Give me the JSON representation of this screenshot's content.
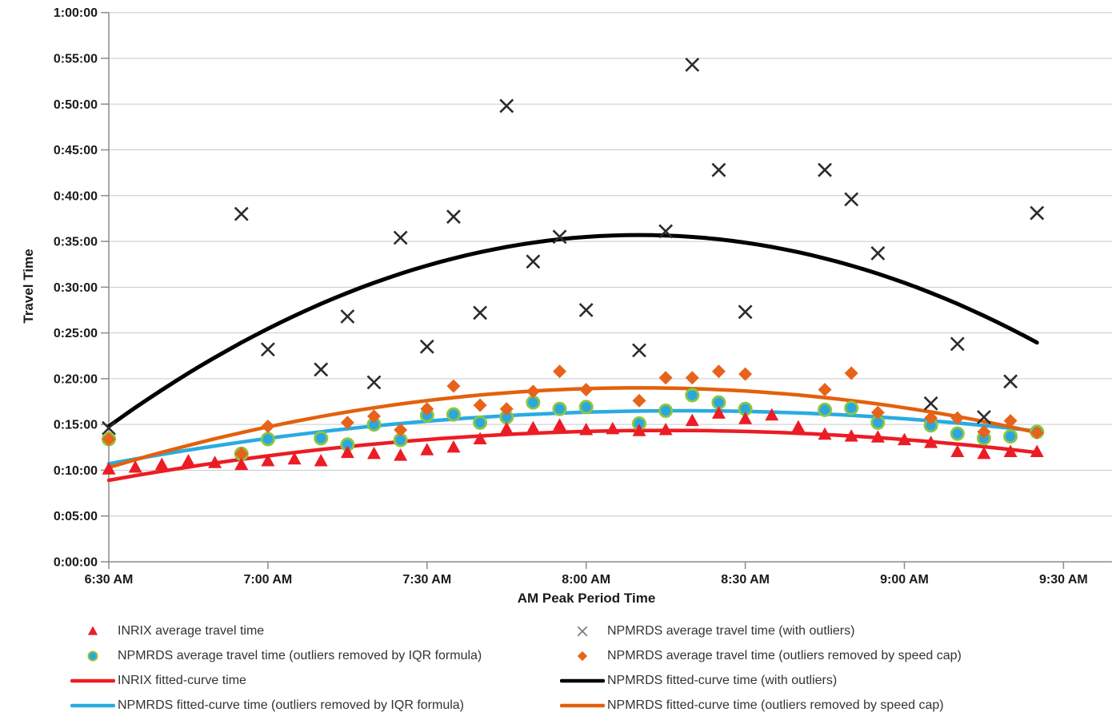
{
  "chart_data": {
    "type": "scatter",
    "title": "",
    "xlabel": "AM Peak Period Time",
    "ylabel": "Travel Time",
    "x_axis": {
      "tick_labels": [
        "6:30 AM",
        "7:00 AM",
        "7:30 AM",
        "8:00 AM",
        "8:30 AM",
        "9:00 AM",
        "9:30 AM"
      ],
      "tick_minutes_after_start": [
        0,
        30,
        60,
        90,
        120,
        150,
        180
      ],
      "unit": "minutes after 6:30 AM"
    },
    "y_axis": {
      "tick_labels": [
        "1:00:00",
        "0:55:00",
        "0:50:00",
        "0:45:00",
        "0:40:00",
        "0:35:00",
        "0:30:00",
        "0:25:00",
        "0:20:00",
        "0:15:00",
        "0:10:00",
        "0:05:00",
        "0:00:00"
      ],
      "tick_minutes": [
        60,
        55,
        50,
        45,
        40,
        35,
        30,
        25,
        20,
        15,
        10,
        5,
        0
      ],
      "range_minutes": [
        0,
        60
      ],
      "unit": "travel time in decimal minutes"
    },
    "grid": "horizontal-only",
    "style": {
      "grid_color": "#c9c9c9",
      "axis_color": "#8c8c8c",
      "text_color": "#1a1a1a"
    },
    "series": [
      {
        "id": "npmrds-outliers",
        "name": "NPMRDS average travel time (with outliers)",
        "marker": "x",
        "color": "#2b2b2b",
        "points": [
          [
            0,
            14.6
          ],
          [
            25,
            38.0
          ],
          [
            30,
            23.2
          ],
          [
            40,
            21.0
          ],
          [
            45,
            26.8
          ],
          [
            50,
            19.6
          ],
          [
            55,
            35.4
          ],
          [
            60,
            23.5
          ],
          [
            65,
            37.7
          ],
          [
            70,
            27.2
          ],
          [
            75,
            49.8
          ],
          [
            80,
            32.8
          ],
          [
            85,
            35.5
          ],
          [
            90,
            27.5
          ],
          [
            100,
            23.1
          ],
          [
            105,
            36.1
          ],
          [
            110,
            54.3
          ],
          [
            115,
            42.8
          ],
          [
            120,
            27.3
          ],
          [
            135,
            42.8
          ],
          [
            140,
            39.6
          ],
          [
            145,
            33.7
          ],
          [
            155,
            17.3
          ],
          [
            160,
            23.8
          ],
          [
            165,
            15.8
          ],
          [
            170,
            19.7
          ],
          [
            175,
            38.1
          ]
        ]
      },
      {
        "id": "npmrds-iqr",
        "name": "NPMRDS average travel time (outliers removed by IQR formula)",
        "marker": "circle",
        "fill": "#2ba7df",
        "ring": "#8cc63f",
        "points": [
          [
            0,
            13.4
          ],
          [
            25,
            11.8
          ],
          [
            30,
            13.4
          ],
          [
            40,
            13.5
          ],
          [
            45,
            12.8
          ],
          [
            50,
            15.0
          ],
          [
            55,
            13.3
          ],
          [
            60,
            16.0
          ],
          [
            65,
            16.1
          ],
          [
            70,
            15.2
          ],
          [
            75,
            15.8
          ],
          [
            80,
            17.4
          ],
          [
            85,
            16.7
          ],
          [
            90,
            16.9
          ],
          [
            100,
            15.1
          ],
          [
            105,
            16.5
          ],
          [
            110,
            18.2
          ],
          [
            115,
            17.4
          ],
          [
            120,
            16.7
          ],
          [
            135,
            16.6
          ],
          [
            140,
            16.8
          ],
          [
            145,
            15.2
          ],
          [
            155,
            14.9
          ],
          [
            160,
            14.0
          ],
          [
            165,
            13.5
          ],
          [
            170,
            13.7
          ],
          [
            175,
            14.2
          ]
        ]
      },
      {
        "id": "npmrds-speedcap",
        "name": "NPMRDS average travel time (outliers removed by speed cap)",
        "marker": "diamond",
        "color": "#e7631b",
        "points": [
          [
            0,
            13.4
          ],
          [
            25,
            11.8
          ],
          [
            30,
            14.8
          ],
          [
            45,
            15.2
          ],
          [
            50,
            15.9
          ],
          [
            55,
            14.4
          ],
          [
            60,
            16.7
          ],
          [
            65,
            19.2
          ],
          [
            70,
            17.1
          ],
          [
            75,
            16.7
          ],
          [
            80,
            18.6
          ],
          [
            85,
            20.8
          ],
          [
            90,
            18.8
          ],
          [
            100,
            17.6
          ],
          [
            105,
            20.1
          ],
          [
            110,
            20.1
          ],
          [
            115,
            20.8
          ],
          [
            120,
            20.5
          ],
          [
            135,
            18.8
          ],
          [
            140,
            20.6
          ],
          [
            145,
            16.3
          ],
          [
            155,
            15.7
          ],
          [
            160,
            15.7
          ],
          [
            165,
            14.2
          ],
          [
            170,
            15.4
          ],
          [
            175,
            14.1
          ]
        ]
      },
      {
        "id": "inrix",
        "name": "INRIX average travel time",
        "marker": "triangle",
        "color": "#ec1c24",
        "points": [
          [
            0,
            10.1
          ],
          [
            5,
            10.3
          ],
          [
            10,
            10.6
          ],
          [
            15,
            11.0
          ],
          [
            20,
            10.8
          ],
          [
            25,
            10.6
          ],
          [
            30,
            11.0
          ],
          [
            35,
            11.2
          ],
          [
            40,
            11.0
          ],
          [
            45,
            11.9
          ],
          [
            50,
            11.8
          ],
          [
            55,
            11.6
          ],
          [
            60,
            12.2
          ],
          [
            65,
            12.5
          ],
          [
            70,
            13.4
          ],
          [
            75,
            14.5
          ],
          [
            80,
            14.6
          ],
          [
            85,
            14.9
          ],
          [
            90,
            14.4
          ],
          [
            95,
            14.5
          ],
          [
            100,
            14.3
          ],
          [
            105,
            14.4
          ],
          [
            110,
            15.4
          ],
          [
            115,
            16.2
          ],
          [
            120,
            15.6
          ],
          [
            125,
            16.0
          ],
          [
            130,
            14.7
          ],
          [
            135,
            13.9
          ],
          [
            140,
            13.7
          ],
          [
            145,
            13.6
          ],
          [
            150,
            13.3
          ],
          [
            155,
            13.0
          ],
          [
            160,
            12.0
          ],
          [
            165,
            11.8
          ],
          [
            170,
            12.0
          ],
          [
            175,
            12.0
          ]
        ]
      }
    ],
    "fitted_curves": [
      {
        "id": "inrix-fit",
        "name": "INRIX fitted-curve time",
        "color": "#ec1c24",
        "width": 4.5,
        "a": -0.000494,
        "peak_minute": 105,
        "peak_value": 14.35,
        "from": 0,
        "to": 175
      },
      {
        "id": "npmrds-fit-iqr",
        "name": "NPMRDS fitted-curve time (outliers removed by IQR formula)",
        "color": "#29abe2",
        "width": 4.5,
        "a": -0.000497,
        "peak_minute": 108,
        "peak_value": 16.5,
        "from": 0,
        "to": 175
      },
      {
        "id": "npmrds-fit-speedcap",
        "name": "NPMRDS fitted-curve time (outliers removed by speed cap)",
        "color": "#e2610d",
        "width": 4.5,
        "a": -0.00087,
        "peak_minute": 100,
        "peak_value": 19.0,
        "from": 0,
        "to": 175
      },
      {
        "id": "npmrds-fit-outliers",
        "name": "NPMRDS fitted-curve time (with outliers)",
        "color": "#000000",
        "width": 5,
        "a": -0.00209,
        "peak_minute": 100,
        "peak_value": 35.7,
        "from": 0,
        "to": 175
      }
    ],
    "legend": [
      {
        "symbol": "triangle",
        "color": "#ec1c24",
        "label": "INRIX average travel time"
      },
      {
        "symbol": "x",
        "color": "#7f7f7f",
        "label": "NPMRDS average travel time (with outliers)"
      },
      {
        "symbol": "circle",
        "color": "#2ba7df",
        "ring": "#8cc63f",
        "label": "NPMRDS average travel time (outliers removed by IQR formula)"
      },
      {
        "symbol": "diamond",
        "color": "#e7631b",
        "label": "NPMRDS average travel time (outliers removed by speed cap)"
      },
      {
        "symbol": "line",
        "color": "#ec1c24",
        "label": "INRIX fitted-curve time"
      },
      {
        "symbol": "line",
        "color": "#000000",
        "label": "NPMRDS fitted-curve time (with outliers)"
      },
      {
        "symbol": "line",
        "color": "#29abe2",
        "label": "NPMRDS fitted-curve time (outliers removed by IQR formula)"
      },
      {
        "symbol": "line",
        "color": "#e2610d",
        "label": "NPMRDS fitted-curve time (outliers removed by speed cap)"
      }
    ]
  }
}
